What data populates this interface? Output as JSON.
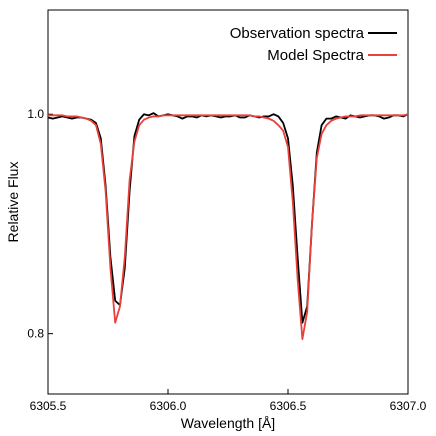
{
  "chart_data": {
    "type": "line",
    "title": "",
    "xlabel": "Wavelength [Å]",
    "ylabel": "Relative Flux",
    "xlim": [
      6305.5,
      6307.0
    ],
    "ylim": [
      0.745,
      1.095
    ],
    "xticks": [
      6305.5,
      6306.0,
      6306.5,
      6307.0
    ],
    "xtick_labels": [
      "6305.5",
      "6306.0",
      "6306.5",
      "6307.0"
    ],
    "yticks": [
      0.8,
      1.0
    ],
    "ytick_labels": [
      "0.8",
      "1.0"
    ],
    "grid": false,
    "legend_position": "top-right",
    "series": [
      {
        "name": "Observation spectra",
        "color": "#000000",
        "x": [
          6305.5,
          6305.52,
          6305.54,
          6305.56,
          6305.58,
          6305.6,
          6305.62,
          6305.64,
          6305.66,
          6305.68,
          6305.7,
          6305.72,
          6305.74,
          6305.76,
          6305.78,
          6305.8,
          6305.82,
          6305.84,
          6305.86,
          6305.88,
          6305.9,
          6305.92,
          6305.94,
          6305.96,
          6305.98,
          6306.0,
          6306.02,
          6306.04,
          6306.06,
          6306.08,
          6306.1,
          6306.12,
          6306.14,
          6306.16,
          6306.18,
          6306.2,
          6306.22,
          6306.24,
          6306.26,
          6306.28,
          6306.3,
          6306.32,
          6306.34,
          6306.36,
          6306.38,
          6306.4,
          6306.42,
          6306.44,
          6306.46,
          6306.48,
          6306.5,
          6306.52,
          6306.54,
          6306.56,
          6306.58,
          6306.6,
          6306.62,
          6306.64,
          6306.66,
          6306.68,
          6306.7,
          6306.72,
          6306.74,
          6306.76,
          6306.78,
          6306.8,
          6306.82,
          6306.84,
          6306.86,
          6306.88,
          6306.9,
          6306.92,
          6306.94,
          6306.96,
          6306.98,
          6307.0
        ],
        "y": [
          0.997,
          0.996,
          0.997,
          0.998,
          0.997,
          0.996,
          0.997,
          0.997,
          0.996,
          0.995,
          0.992,
          0.978,
          0.935,
          0.87,
          0.83,
          0.826,
          0.86,
          0.93,
          0.98,
          0.995,
          1.0,
          0.999,
          1.001,
          0.998,
          0.999,
          1.0,
          0.999,
          0.998,
          0.996,
          0.998,
          0.998,
          0.997,
          0.999,
          0.998,
          0.999,
          0.998,
          0.997,
          0.998,
          0.998,
          0.999,
          0.997,
          0.997,
          0.999,
          0.998,
          0.997,
          0.998,
          0.998,
          1.0,
          0.998,
          0.992,
          0.978,
          0.935,
          0.87,
          0.81,
          0.825,
          0.9,
          0.965,
          0.99,
          0.996,
          0.996,
          0.998,
          0.997,
          0.996,
          0.999,
          0.998,
          0.997,
          0.998,
          0.999,
          0.999,
          0.998,
          0.996,
          0.997,
          0.999,
          0.999,
          0.998,
          1.0
        ]
      },
      {
        "name": "Model Spectra",
        "color": "#e8403a",
        "x": [
          6305.5,
          6305.52,
          6305.54,
          6305.56,
          6305.58,
          6305.6,
          6305.62,
          6305.64,
          6305.66,
          6305.68,
          6305.7,
          6305.72,
          6305.74,
          6305.76,
          6305.78,
          6305.8,
          6305.82,
          6305.84,
          6305.86,
          6305.88,
          6305.9,
          6305.92,
          6305.94,
          6305.96,
          6305.98,
          6306.0,
          6306.02,
          6306.04,
          6306.06,
          6306.08,
          6306.1,
          6306.12,
          6306.14,
          6306.16,
          6306.18,
          6306.2,
          6306.22,
          6306.24,
          6306.26,
          6306.28,
          6306.3,
          6306.32,
          6306.34,
          6306.36,
          6306.38,
          6306.4,
          6306.42,
          6306.44,
          6306.46,
          6306.48,
          6306.5,
          6306.52,
          6306.54,
          6306.56,
          6306.58,
          6306.6,
          6306.62,
          6306.64,
          6306.66,
          6306.68,
          6306.7,
          6306.72,
          6306.74,
          6306.76,
          6306.78,
          6306.8,
          6306.82,
          6306.84,
          6306.86,
          6306.88,
          6306.9,
          6306.92,
          6306.94,
          6306.96,
          6306.98,
          6307.0
        ],
        "y": [
          0.999,
          0.999,
          0.999,
          0.999,
          0.998,
          0.998,
          0.998,
          0.997,
          0.996,
          0.994,
          0.99,
          0.973,
          0.93,
          0.86,
          0.81,
          0.825,
          0.87,
          0.94,
          0.975,
          0.99,
          0.995,
          0.997,
          0.998,
          0.998,
          0.999,
          0.999,
          0.999,
          0.999,
          0.999,
          0.999,
          0.999,
          0.999,
          0.999,
          0.999,
          0.999,
          0.999,
          0.999,
          0.999,
          0.999,
          0.999,
          0.999,
          0.999,
          0.999,
          0.998,
          0.998,
          0.997,
          0.996,
          0.994,
          0.99,
          0.985,
          0.97,
          0.92,
          0.85,
          0.795,
          0.82,
          0.9,
          0.96,
          0.982,
          0.99,
          0.994,
          0.996,
          0.997,
          0.998,
          0.998,
          0.998,
          0.999,
          0.999,
          0.999,
          0.999,
          0.999,
          0.999,
          0.999,
          0.999,
          0.999,
          0.999,
          1.0
        ]
      }
    ]
  }
}
